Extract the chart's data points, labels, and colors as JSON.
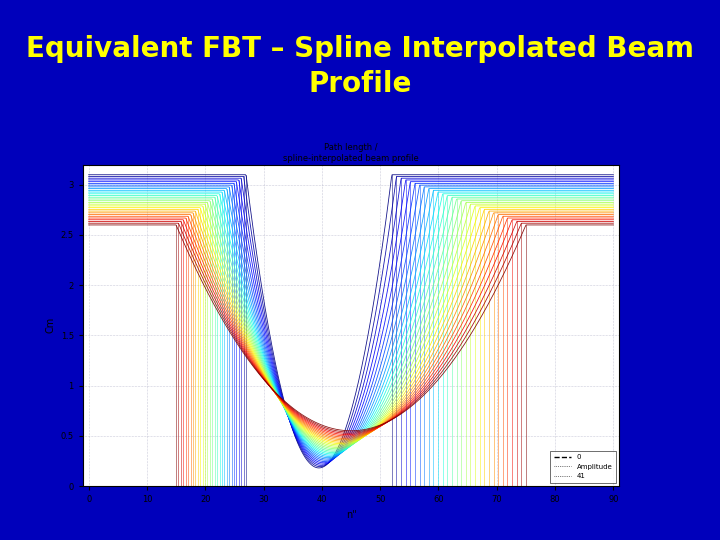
{
  "title": "Equivalent FBT – Spline Interpolated Beam\nProfile",
  "plot_title_line1": "Path length /",
  "plot_title_line2": "spline-interpolated beam profile",
  "xlabel": "n\"",
  "ylabel": "Cm",
  "xlim": [
    -1,
    91
  ],
  "ylim": [
    0,
    3.2
  ],
  "xticks": [
    0,
    10,
    20,
    30,
    40,
    50,
    60,
    70,
    80,
    90
  ],
  "ytick_vals": [
    0,
    0.5,
    1,
    1.5,
    2,
    2.5,
    3
  ],
  "ytick_labels": [
    "0",
    "0.5",
    "1",
    "1.5",
    "2",
    "2.5",
    "3"
  ],
  "bg_color": "#0000bb",
  "title_color": "#ffff00",
  "title_fontsize": 20,
  "n_curves": 30,
  "x_center": 43,
  "x_drop_left_min": 15,
  "x_drop_left_max": 27,
  "x_drop_right_min": 52,
  "x_drop_right_max": 75,
  "plateau_height": 3.1,
  "valley_depth_min": 0.18,
  "valley_depth_max": 0.55
}
